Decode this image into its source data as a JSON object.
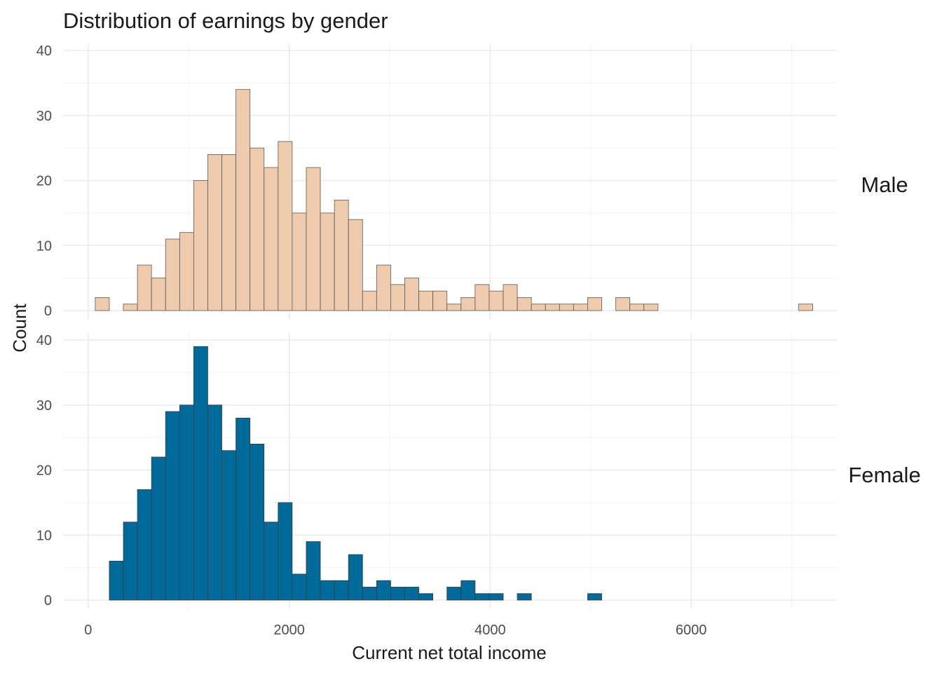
{
  "chart_data": {
    "type": "bar",
    "title": "Distribution of earnings by gender",
    "xlabel": "Current net total income",
    "ylabel": "Count",
    "xlim": [
      -250,
      7450
    ],
    "ylim": [
      0,
      40
    ],
    "x_ticks": [
      0,
      2000,
      4000,
      6000
    ],
    "y_ticks": [
      0,
      10,
      20,
      30,
      40
    ],
    "bin_width": 140,
    "grid": true,
    "panels": [
      {
        "name": "Male",
        "fill": "#EDCBAC",
        "outline": "#5a5a5a",
        "x_start": 70,
        "counts": [
          2,
          0,
          1,
          7,
          5,
          11,
          12,
          20,
          24,
          24,
          34,
          25,
          22,
          26,
          15,
          22,
          15,
          17,
          14,
          3,
          7,
          4,
          5,
          3,
          3,
          1,
          2,
          4,
          3,
          4,
          2,
          1,
          1,
          1,
          1,
          2,
          0,
          2,
          1,
          1,
          0,
          0,
          0,
          0,
          0,
          0,
          0,
          0,
          0,
          0,
          1
        ]
      },
      {
        "name": "Female",
        "fill": "#006A9A",
        "outline": "#3d3d3d",
        "x_start": 70,
        "counts": [
          0,
          6,
          12,
          17,
          22,
          29,
          30,
          39,
          30,
          23,
          28,
          24,
          12,
          15,
          4,
          9,
          3,
          3,
          7,
          2,
          3,
          2,
          2,
          1,
          0,
          2,
          3,
          1,
          1,
          0,
          1,
          0,
          0,
          0,
          0,
          1,
          0,
          0,
          0,
          0,
          0,
          0,
          0,
          0,
          0,
          0,
          0,
          0,
          0,
          0,
          0
        ]
      }
    ]
  }
}
